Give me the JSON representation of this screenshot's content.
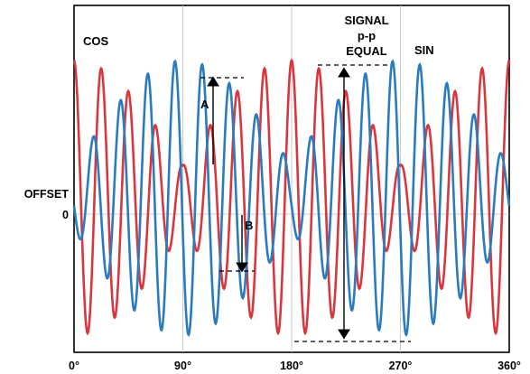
{
  "chart_data": {
    "type": "line",
    "x_ticks": [
      "0°",
      "90°",
      "180°",
      "270°",
      "360°"
    ],
    "xlim": [
      0,
      360
    ],
    "y_labels": {
      "offset": "OFFSET",
      "zero": "0"
    },
    "series": [
      {
        "name": "COS",
        "color": "#d9373f",
        "description_points": {
          "x": [
            0,
            10,
            20,
            30,
            40,
            50,
            60,
            70,
            80,
            90,
            100,
            110,
            120,
            130,
            140,
            150,
            160,
            170,
            180,
            190,
            200,
            210,
            220,
            230,
            240,
            250,
            260,
            270,
            280,
            290,
            300,
            310,
            320,
            330,
            340,
            350,
            360
          ],
          "y": [
            0.15,
            1.0,
            -0.85,
            0.55,
            0.05,
            0.55,
            -0.6,
            0.45,
            -0.15,
            0.05,
            0.1,
            -0.3,
            0.35,
            -0.55,
            0.7,
            -0.75,
            0.85,
            -0.95,
            0.95,
            -1.0,
            1.0,
            -1.0,
            0.95,
            -0.9,
            0.85,
            -0.75,
            0.6,
            -0.4,
            0.3,
            -0.3,
            0.5,
            -0.55,
            0.7,
            -0.7,
            0.8,
            -0.55,
            0.25
          ]
        }
      },
      {
        "name": "SIN",
        "color": "#2b7bbf",
        "description_points": {
          "x": [
            0,
            10,
            20,
            30,
            40,
            50,
            60,
            70,
            80,
            90,
            100,
            110,
            120,
            130,
            140,
            150,
            160,
            170,
            180,
            190,
            200,
            210,
            220,
            230,
            240,
            250,
            260,
            270,
            280,
            290,
            300,
            310,
            320,
            330,
            340,
            350,
            360
          ],
          "y": [
            0,
            0.05,
            -0.3,
            0.55,
            -0.7,
            0.85,
            -0.95,
            0.95,
            -0.95,
            1.0,
            -0.95,
            0.85,
            -0.7,
            0.5,
            -0.35,
            0.2,
            -0.1,
            0.1,
            -0.2,
            0.3,
            -0.5,
            0.7,
            -0.85,
            0.95,
            -1.0,
            1.0,
            -0.95,
            0.85,
            -0.7,
            0.55,
            -0.45,
            0.35,
            -0.3,
            0.2,
            -0.15,
            0.1,
            -0.05
          ]
        }
      }
    ],
    "annotations": {
      "cos_label": "COS",
      "sin_label": "SIN",
      "signal_label_1": "SIGNAL",
      "signal_label_2": "p-p",
      "signal_label_3": "EQUAL",
      "a_label": "A",
      "b_label": "B"
    }
  }
}
